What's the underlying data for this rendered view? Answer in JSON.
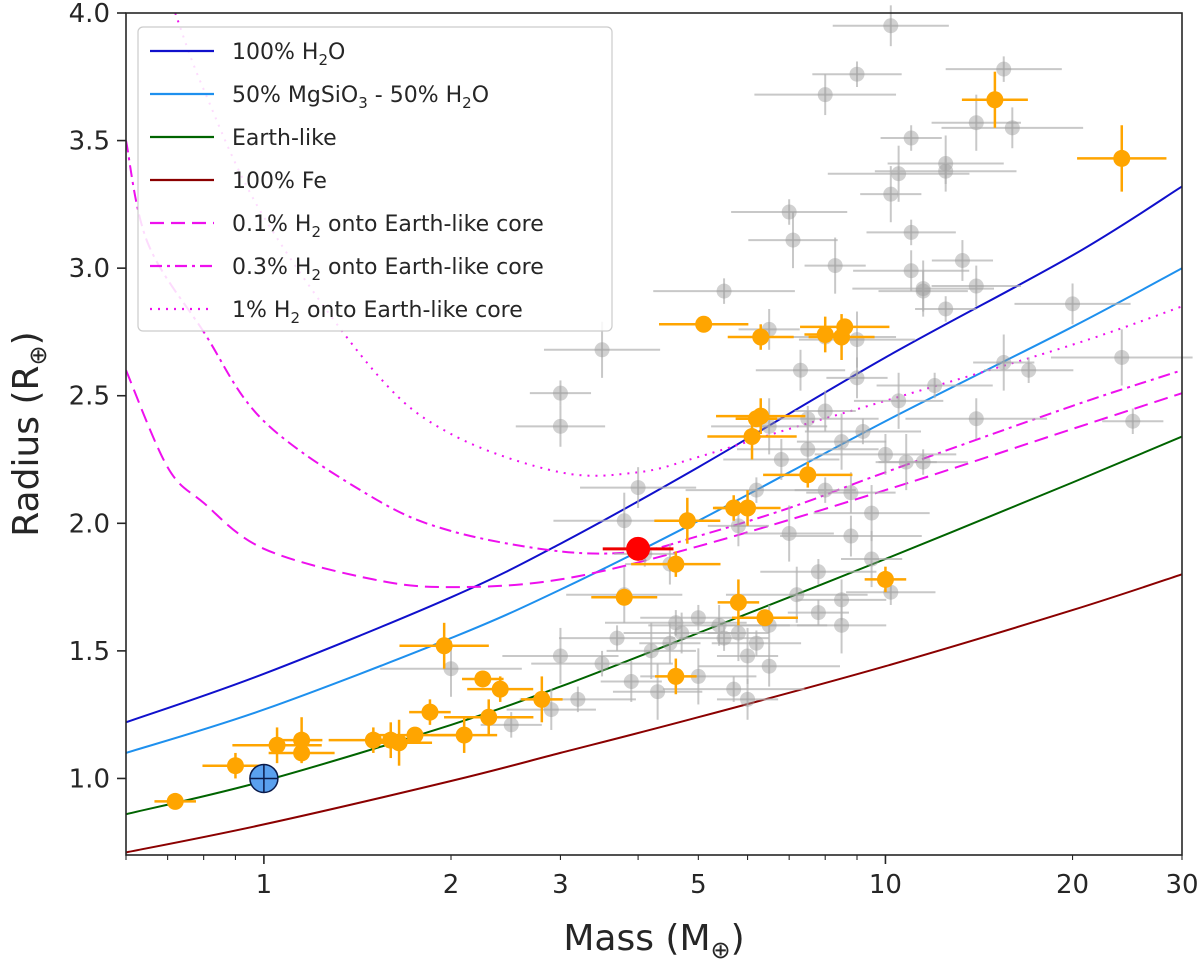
{
  "chart_data": {
    "type": "scatter",
    "xscale": "log",
    "xlim": [
      0.6,
      30
    ],
    "ylim": [
      0.7,
      4.0
    ],
    "xlabel": {
      "main": "Mass (M",
      "sub": "⊕",
      "end": ")"
    },
    "ylabel": {
      "main": "Radius (R",
      "sub": "⊕",
      "end": ")"
    },
    "xticks": [
      {
        "value": 1,
        "label": "1"
      },
      {
        "value": 2,
        "label": "2"
      },
      {
        "value": 3,
        "label": "3"
      },
      {
        "value": 5,
        "label": "5"
      },
      {
        "value": 10,
        "label": "10"
      },
      {
        "value": 20,
        "label": "20"
      },
      {
        "value": 30,
        "label": "30"
      }
    ],
    "yticks": [
      {
        "value": 1.0,
        "label": "1.0"
      },
      {
        "value": 1.5,
        "label": "1.5"
      },
      {
        "value": 2.0,
        "label": "2.0"
      },
      {
        "value": 2.5,
        "label": "2.5"
      },
      {
        "value": 3.0,
        "label": "3.0"
      },
      {
        "value": 3.5,
        "label": "3.5"
      },
      {
        "value": 4.0,
        "label": "4.0"
      }
    ],
    "legend_position": "top-left",
    "legend": [
      {
        "key": "h2o",
        "parts": [
          [
            "100% H",
            ""
          ],
          [
            "2",
            "sub"
          ],
          [
            "O",
            ""
          ]
        ]
      },
      {
        "key": "mgsio3",
        "parts": [
          [
            "50% MgSiO",
            ""
          ],
          [
            "3",
            "sub"
          ],
          [
            " - 50% H",
            ""
          ],
          [
            "2",
            "sub"
          ],
          [
            "O",
            ""
          ]
        ]
      },
      {
        "key": "earth",
        "parts": [
          [
            "Earth-like",
            ""
          ]
        ]
      },
      {
        "key": "fe",
        "parts": [
          [
            "100% Fe",
            ""
          ]
        ]
      },
      {
        "key": "h2_01",
        "parts": [
          [
            "0.1% H",
            ""
          ],
          [
            "2",
            "sub"
          ],
          [
            " onto Earth-like core",
            ""
          ]
        ]
      },
      {
        "key": "h2_03",
        "parts": [
          [
            "0.3% H",
            ""
          ],
          [
            "2",
            "sub"
          ],
          [
            " onto Earth-like core",
            ""
          ]
        ]
      },
      {
        "key": "h2_1",
        "parts": [
          [
            "1% H",
            ""
          ],
          [
            "2",
            "sub"
          ],
          [
            " onto Earth-like core",
            ""
          ]
        ]
      }
    ],
    "series": [
      {
        "key": "h2o",
        "name": "100% H2O",
        "color": "#1010cc",
        "dash": "solid",
        "points": [
          [
            0.6,
            1.22
          ],
          [
            1,
            1.41
          ],
          [
            2,
            1.71
          ],
          [
            3,
            1.92
          ],
          [
            5,
            2.22
          ],
          [
            10,
            2.65
          ],
          [
            20,
            3.05
          ],
          [
            30,
            3.32
          ]
        ]
      },
      {
        "key": "mgsio3",
        "name": "50% MgSiO3 - 50% H2O",
        "color": "#1e90ee",
        "dash": "solid",
        "points": [
          [
            0.6,
            1.1
          ],
          [
            1,
            1.27
          ],
          [
            2,
            1.55
          ],
          [
            3,
            1.74
          ],
          [
            5,
            2.01
          ],
          [
            10,
            2.4
          ],
          [
            20,
            2.77
          ],
          [
            30,
            3.0
          ]
        ]
      },
      {
        "key": "earth",
        "name": "Earth-like",
        "color": "#006400",
        "dash": "solid",
        "points": [
          [
            0.6,
            0.86
          ],
          [
            1,
            0.99
          ],
          [
            2,
            1.21
          ],
          [
            3,
            1.36
          ],
          [
            5,
            1.57
          ],
          [
            10,
            1.86
          ],
          [
            20,
            2.16
          ],
          [
            30,
            2.34
          ]
        ]
      },
      {
        "key": "fe",
        "name": "100% Fe",
        "color": "#8b0000",
        "dash": "solid",
        "points": [
          [
            0.6,
            0.71
          ],
          [
            1,
            0.82
          ],
          [
            2,
            0.99
          ],
          [
            3,
            1.1
          ],
          [
            5,
            1.24
          ],
          [
            10,
            1.44
          ],
          [
            20,
            1.66
          ],
          [
            30,
            1.8
          ]
        ]
      },
      {
        "key": "h2_01",
        "name": "0.1% H2 onto Earth-like core",
        "color": "#ee10ee",
        "dash": "dashed",
        "points": [
          [
            0.6,
            2.6
          ],
          [
            0.7,
            2.22
          ],
          [
            0.8,
            2.08
          ],
          [
            1,
            1.9
          ],
          [
            1.5,
            1.78
          ],
          [
            2,
            1.75
          ],
          [
            3,
            1.78
          ],
          [
            5,
            1.91
          ],
          [
            10,
            2.13
          ],
          [
            20,
            2.37
          ],
          [
            30,
            2.51
          ]
        ]
      },
      {
        "key": "h2_03",
        "name": "0.3% H2 onto Earth-like core",
        "color": "#ee10ee",
        "dash": "dashdot",
        "points": [
          [
            0.6,
            3.5
          ],
          [
            0.65,
            3.1
          ],
          [
            0.8,
            2.75
          ],
          [
            1,
            2.4
          ],
          [
            1.5,
            2.1
          ],
          [
            2,
            1.97
          ],
          [
            3,
            1.89
          ],
          [
            4,
            1.89
          ],
          [
            5,
            1.95
          ],
          [
            7,
            2.06
          ],
          [
            10,
            2.2
          ],
          [
            20,
            2.46
          ],
          [
            30,
            2.6
          ]
        ]
      },
      {
        "key": "h2_1",
        "name": "1% H2 onto Earth-like core",
        "color": "#ee10ee",
        "dash": "dotted",
        "points": [
          [
            0.72,
            4.0
          ],
          [
            0.8,
            3.7
          ],
          [
            1,
            3.2
          ],
          [
            1.5,
            2.6
          ],
          [
            2,
            2.35
          ],
          [
            3,
            2.2
          ],
          [
            4,
            2.2
          ],
          [
            5,
            2.26
          ],
          [
            7,
            2.37
          ],
          [
            10,
            2.48
          ],
          [
            20,
            2.7
          ],
          [
            30,
            2.85
          ]
        ]
      }
    ],
    "known_planets_gray": [
      [
        3.0,
        2.51
      ],
      [
        3.0,
        2.38
      ],
      [
        3.5,
        2.68
      ],
      [
        5.5,
        2.91
      ],
      [
        6.5,
        2.76
      ],
      [
        7.1,
        3.11
      ],
      [
        7.0,
        3.22
      ],
      [
        8.0,
        3.68
      ],
      [
        8.3,
        3.01
      ],
      [
        9.0,
        3.76
      ],
      [
        10.2,
        3.95
      ],
      [
        10.5,
        3.37
      ],
      [
        11.0,
        3.51
      ],
      [
        11.5,
        2.91
      ],
      [
        12.5,
        3.41
      ],
      [
        12.5,
        3.38
      ],
      [
        13.3,
        3.03
      ],
      [
        14,
        3.57
      ],
      [
        15.5,
        3.78
      ],
      [
        16,
        3.55
      ],
      [
        10.2,
        3.29
      ],
      [
        11.0,
        3.14
      ],
      [
        11.0,
        2.99
      ],
      [
        11.5,
        2.92
      ],
      [
        12.5,
        2.84
      ],
      [
        14,
        2.93
      ],
      [
        9.0,
        2.72
      ],
      [
        8.0,
        2.73
      ],
      [
        9.0,
        2.57
      ],
      [
        10.5,
        2.48
      ],
      [
        12.0,
        2.54
      ],
      [
        14,
        2.41
      ],
      [
        15.5,
        2.63
      ],
      [
        17,
        2.6
      ],
      [
        20,
        2.86
      ],
      [
        24,
        2.65
      ],
      [
        25,
        2.4
      ],
      [
        7.3,
        2.6
      ],
      [
        6.5,
        2.38
      ],
      [
        7.5,
        2.41
      ],
      [
        8.0,
        2.44
      ],
      [
        8.5,
        2.32
      ],
      [
        9.2,
        2.36
      ],
      [
        10.0,
        2.27
      ],
      [
        10.8,
        2.24
      ],
      [
        11.5,
        2.24
      ],
      [
        6.8,
        2.25
      ],
      [
        7.5,
        2.29
      ],
      [
        8.0,
        2.13
      ],
      [
        8.8,
        2.12
      ],
      [
        9.5,
        2.04
      ],
      [
        6.2,
        2.13
      ],
      [
        5.8,
        1.99
      ],
      [
        7.0,
        1.96
      ],
      [
        7.8,
        1.81
      ],
      [
        8.8,
        1.95
      ],
      [
        9.5,
        1.86
      ],
      [
        10.2,
        1.73
      ],
      [
        4.0,
        2.14
      ],
      [
        3.8,
        2.01
      ],
      [
        4.1,
        1.88
      ],
      [
        4.5,
        1.84
      ],
      [
        3.8,
        1.72
      ],
      [
        4.6,
        1.61
      ],
      [
        4.5,
        1.53
      ],
      [
        4.2,
        1.5
      ],
      [
        5.0,
        1.63
      ],
      [
        5.4,
        1.6
      ],
      [
        5.8,
        1.57
      ],
      [
        6.2,
        1.53
      ],
      [
        6.5,
        1.6
      ],
      [
        7.2,
        1.72
      ],
      [
        7.8,
        1.65
      ],
      [
        8.5,
        1.7
      ],
      [
        3.0,
        1.48
      ],
      [
        3.5,
        1.45
      ],
      [
        3.9,
        1.38
      ],
      [
        4.3,
        1.34
      ],
      [
        3.2,
        1.31
      ],
      [
        6.5,
        1.44
      ],
      [
        6.0,
        1.48
      ],
      [
        5.5,
        1.55
      ],
      [
        4.7,
        1.57
      ],
      [
        2.0,
        1.43
      ],
      [
        2.5,
        1.21
      ],
      [
        2.9,
        1.27
      ],
      [
        5.0,
        1.4
      ],
      [
        5.7,
        1.35
      ],
      [
        6.0,
        1.31
      ],
      [
        8.5,
        1.6
      ],
      [
        3.7,
        1.55
      ]
    ],
    "sample_planets_orange": [
      [
        0.72,
        0.91
      ],
      [
        0.9,
        1.05
      ],
      [
        1.05,
        1.13
      ],
      [
        1.15,
        1.15
      ],
      [
        1.15,
        1.1
      ],
      [
        1.5,
        1.15
      ],
      [
        1.6,
        1.15
      ],
      [
        1.65,
        1.14
      ],
      [
        1.75,
        1.17
      ],
      [
        1.85,
        1.26
      ],
      [
        2.1,
        1.17
      ],
      [
        1.95,
        1.52
      ],
      [
        2.25,
        1.39
      ],
      [
        2.4,
        1.35
      ],
      [
        2.3,
        1.24
      ],
      [
        2.8,
        1.31
      ],
      [
        3.8,
        1.71
      ],
      [
        4.6,
        1.84
      ],
      [
        4.6,
        1.4
      ],
      [
        4.8,
        2.01
      ],
      [
        5.1,
        2.78
      ],
      [
        5.7,
        2.06
      ],
      [
        6.0,
        2.06
      ],
      [
        6.1,
        2.34
      ],
      [
        6.2,
        2.41
      ],
      [
        6.3,
        2.73
      ],
      [
        6.3,
        2.42
      ],
      [
        5.8,
        1.69
      ],
      [
        6.4,
        1.63
      ],
      [
        7.5,
        2.19
      ],
      [
        8.0,
        2.74
      ],
      [
        8.5,
        2.73
      ],
      [
        8.6,
        2.77
      ],
      [
        10.0,
        1.78
      ],
      [
        15.0,
        3.66
      ],
      [
        24.0,
        3.43
      ]
    ],
    "target_planet_red": {
      "mass": 4.0,
      "radius": 1.9
    },
    "earth_marker": {
      "mass": 1.0,
      "radius": 1.0
    }
  }
}
